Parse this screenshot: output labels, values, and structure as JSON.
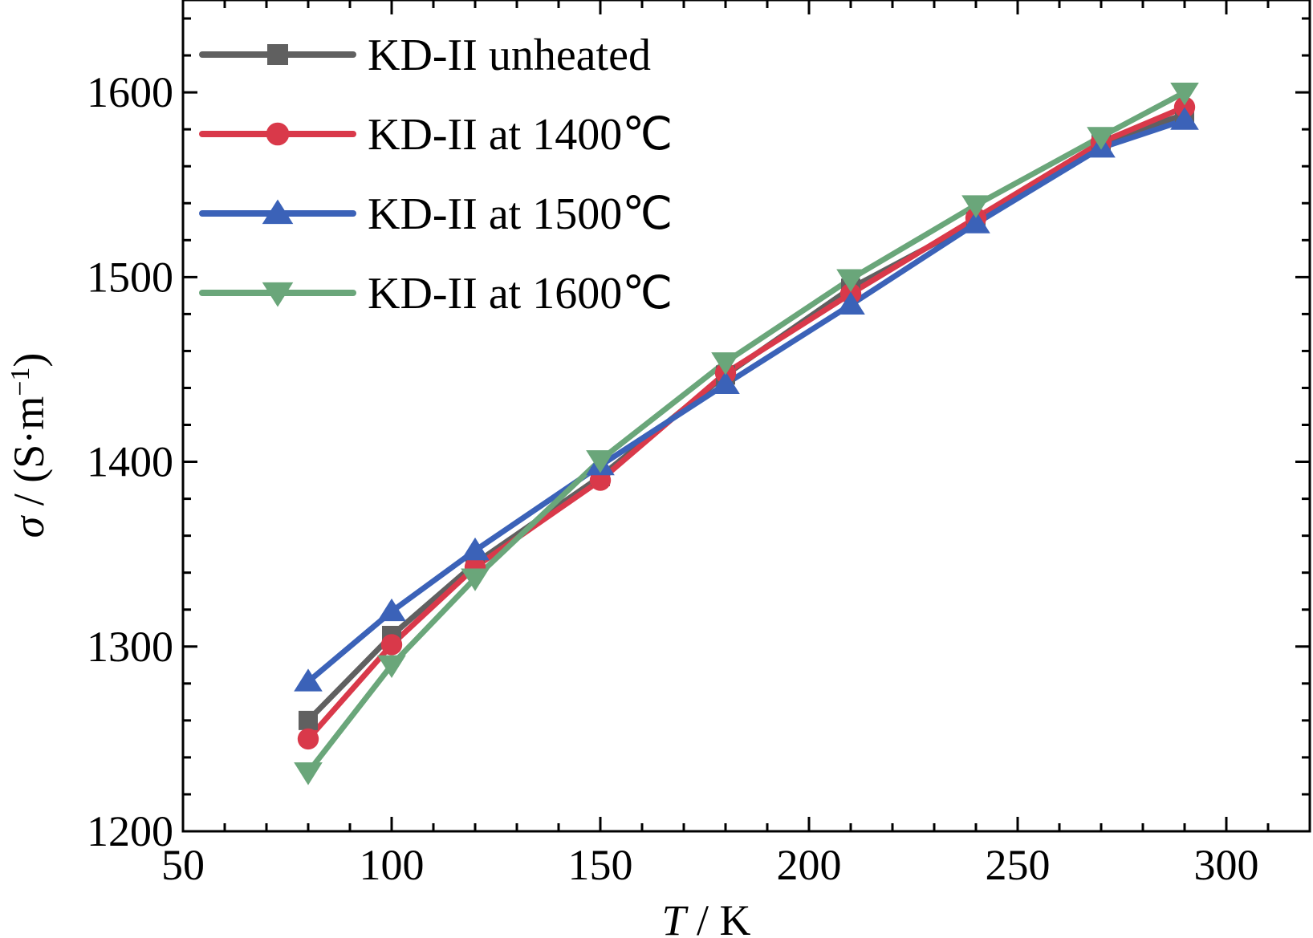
{
  "chart_data": {
    "type": "line",
    "title": "",
    "xlabel": {
      "italic": "T",
      "rest": " / K"
    },
    "ylabel": {
      "italic": "σ",
      "rest": " / (S·m",
      "sup": "−1",
      "close": ")"
    },
    "xlim": [
      50,
      320
    ],
    "ylim": [
      1200,
      1650
    ],
    "xticks": [
      50,
      100,
      150,
      200,
      250,
      300
    ],
    "yticks": [
      1200,
      1300,
      1400,
      1500,
      1600
    ],
    "x_minor_step": 10,
    "y_minor_step": 20,
    "grid": false,
    "legend_position": "top-left",
    "x": [
      80,
      100,
      120,
      150,
      180,
      210,
      240,
      270,
      290
    ],
    "series": [
      {
        "name": "KD-II unheated",
        "color": "#606060",
        "marker": "square",
        "values": [
          1260,
          1306,
          1345,
          1392,
          1447,
          1494,
          1530,
          1573,
          1588
        ]
      },
      {
        "name": "KD-II at 1400℃",
        "color": "#d9394a",
        "marker": "circle",
        "values": [
          1250,
          1301,
          1343,
          1390,
          1448,
          1491,
          1532,
          1573,
          1592
        ]
      },
      {
        "name": "KD-II at 1500℃",
        "color": "#3b62b8",
        "marker": "triangle-up",
        "values": [
          1281,
          1319,
          1352,
          1398,
          1442,
          1485,
          1529,
          1570,
          1585
        ]
      },
      {
        "name": "KD-II at 1600℃",
        "color": "#6aa67a",
        "marker": "triangle-down",
        "values": [
          1232,
          1290,
          1337,
          1401,
          1454,
          1499,
          1539,
          1576,
          1600
        ]
      }
    ]
  }
}
